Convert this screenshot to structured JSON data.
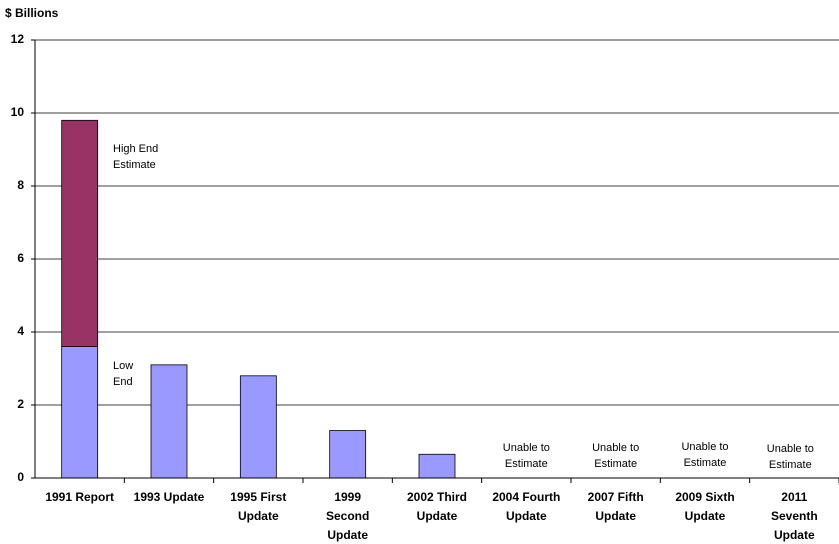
{
  "chart_data": {
    "type": "stacked_bar",
    "ylabel": "$ Billions",
    "categories": [
      [
        "1991 Report"
      ],
      [
        "1993 Update"
      ],
      [
        "1995 First",
        "Update"
      ],
      [
        "1999",
        "Second",
        "Update"
      ],
      [
        "2002 Third",
        "Update"
      ],
      [
        "2004 Fourth",
        "Update"
      ],
      [
        "2007 Fifth",
        "Update"
      ],
      [
        "2009 Sixth",
        "Update"
      ],
      [
        "2011",
        "Seventh",
        "Update"
      ]
    ],
    "series": [
      {
        "name": "Low End",
        "color": "#9999ff",
        "values": [
          3.6,
          3.1,
          2.8,
          1.3,
          0.65,
          null,
          null,
          null,
          null
        ]
      },
      {
        "name": "High End Estimate",
        "color": "#993366",
        "values": [
          6.2,
          null,
          null,
          null,
          null,
          null,
          null,
          null,
          null
        ]
      }
    ],
    "annotations": [
      [
        "High End",
        "Estimate"
      ],
      [
        "Low",
        "End"
      ],
      [
        "Unable to",
        "Estimate"
      ],
      [
        "Unable to",
        "Estimate"
      ],
      [
        "Unable to",
        "Estimate"
      ],
      [
        "Unable to",
        "Estimate"
      ]
    ],
    "ylim": [
      0,
      12
    ],
    "yticks": [
      0,
      2,
      4,
      6,
      8,
      10,
      12
    ],
    "grid": true
  }
}
